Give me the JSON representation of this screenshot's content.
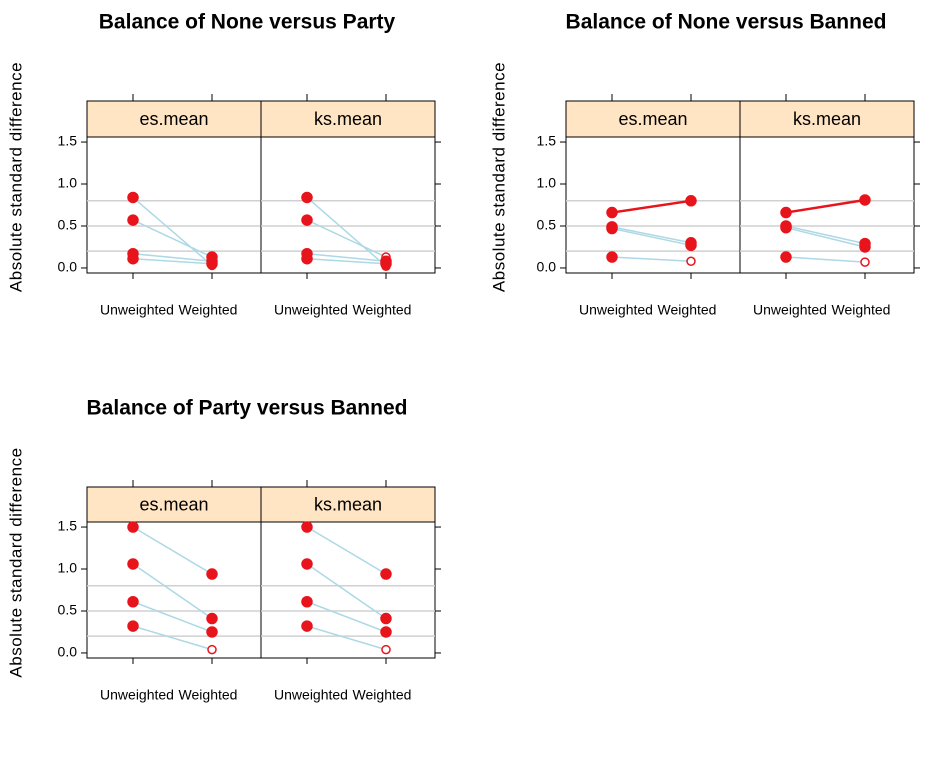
{
  "chart_data": [
    {
      "type": "line",
      "title": "Balance of None versus Party",
      "ylabel": "Absolute standard difference",
      "categories": [
        "Unweighted",
        "Weighted"
      ],
      "ylim": [
        -0.06,
        1.56
      ],
      "yticks": [
        {
          "value": 0,
          "label": "0.0"
        },
        0.5,
        {
          "value": 1,
          "label": "1.0"
        },
        1.5
      ],
      "hlines": [
        0.2,
        0.5,
        0.8
      ],
      "panels": [
        {
          "name": "es.mean",
          "series": [
            {
              "color": "#add8e6",
              "values": [
                0.84,
                0.03
              ],
              "markers": [
                "filled",
                "open"
              ]
            },
            {
              "color": "#add8e6",
              "values": [
                0.57,
                0.13
              ],
              "markers": [
                "filled",
                "filled"
              ]
            },
            {
              "color": "#add8e6",
              "values": [
                0.17,
                0.08
              ],
              "markers": [
                "filled",
                "filled"
              ]
            },
            {
              "color": "#add8e6",
              "values": [
                0.11,
                0.05
              ],
              "markers": [
                "filled",
                "filled"
              ]
            }
          ]
        },
        {
          "name": "ks.mean",
          "series": [
            {
              "color": "#add8e6",
              "values": [
                0.84,
                0.02
              ],
              "markers": [
                "filled",
                "open"
              ]
            },
            {
              "color": "#add8e6",
              "values": [
                0.57,
                0.13
              ],
              "markers": [
                "filled",
                "open"
              ]
            },
            {
              "color": "#add8e6",
              "values": [
                0.17,
                0.08
              ],
              "markers": [
                "filled",
                "filled"
              ]
            },
            {
              "color": "#add8e6",
              "values": [
                0.11,
                0.05
              ],
              "markers": [
                "filled",
                "filled"
              ]
            }
          ]
        }
      ]
    },
    {
      "type": "line",
      "title": "Balance of None versus Banned",
      "ylabel": "Absolute standard difference",
      "categories": [
        "Unweighted",
        "Weighted"
      ],
      "ylim": [
        -0.06,
        1.56
      ],
      "yticks": [
        {
          "value": 0,
          "label": "0.0"
        },
        0.5,
        {
          "value": 1,
          "label": "1.0"
        },
        1.5
      ],
      "hlines": [
        0.2,
        0.5,
        0.8
      ],
      "panels": [
        {
          "name": "es.mean",
          "series": [
            {
              "color": "#e8141c",
              "values": [
                0.66,
                0.8
              ],
              "markers": [
                "filled",
                "filled"
              ]
            },
            {
              "color": "#add8e6",
              "values": [
                0.49,
                0.3
              ],
              "markers": [
                "filled",
                "filled"
              ]
            },
            {
              "color": "#add8e6",
              "values": [
                0.47,
                0.27
              ],
              "markers": [
                "filled",
                "filled"
              ]
            },
            {
              "color": "#add8e6",
              "values": [
                0.13,
                0.08
              ],
              "markers": [
                "filled",
                "open"
              ]
            }
          ]
        },
        {
          "name": "ks.mean",
          "series": [
            {
              "color": "#e8141c",
              "values": [
                0.66,
                0.81
              ],
              "markers": [
                "filled",
                "filled"
              ]
            },
            {
              "color": "#add8e6",
              "values": [
                0.5,
                0.29
              ],
              "markers": [
                "filled",
                "filled"
              ]
            },
            {
              "color": "#add8e6",
              "values": [
                0.48,
                0.25
              ],
              "markers": [
                "filled",
                "filled"
              ]
            },
            {
              "color": "#add8e6",
              "values": [
                0.13,
                0.07
              ],
              "markers": [
                "filled",
                "open"
              ]
            }
          ]
        }
      ]
    },
    {
      "type": "line",
      "title": "Balance of Party versus Banned",
      "ylabel": "Absolute standard difference",
      "categories": [
        "Unweighted",
        "Weighted"
      ],
      "ylim": [
        -0.06,
        1.56
      ],
      "yticks": [
        {
          "value": 0,
          "label": "0.0"
        },
        0.5,
        {
          "value": 1,
          "label": "1.0"
        },
        1.5
      ],
      "hlines": [
        0.2,
        0.5,
        0.8
      ],
      "panels": [
        {
          "name": "es.mean",
          "series": [
            {
              "color": "#add8e6",
              "values": [
                1.5,
                0.94
              ],
              "markers": [
                "filled",
                "filled"
              ]
            },
            {
              "color": "#add8e6",
              "values": [
                1.06,
                0.41
              ],
              "markers": [
                "filled",
                "filled"
              ]
            },
            {
              "color": "#add8e6",
              "values": [
                0.61,
                0.25
              ],
              "markers": [
                "filled",
                "filled"
              ]
            },
            {
              "color": "#add8e6",
              "values": [
                0.32,
                0.04
              ],
              "markers": [
                "filled",
                "open"
              ]
            }
          ]
        },
        {
          "name": "ks.mean",
          "series": [
            {
              "color": "#add8e6",
              "values": [
                1.5,
                0.94
              ],
              "markers": [
                "filled",
                "filled"
              ]
            },
            {
              "color": "#add8e6",
              "values": [
                1.06,
                0.41
              ],
              "markers": [
                "filled",
                "filled"
              ]
            },
            {
              "color": "#add8e6",
              "values": [
                0.61,
                0.25
              ],
              "markers": [
                "filled",
                "filled"
              ]
            },
            {
              "color": "#add8e6",
              "values": [
                0.32,
                0.04
              ],
              "markers": [
                "filled",
                "open"
              ]
            }
          ]
        }
      ]
    }
  ]
}
